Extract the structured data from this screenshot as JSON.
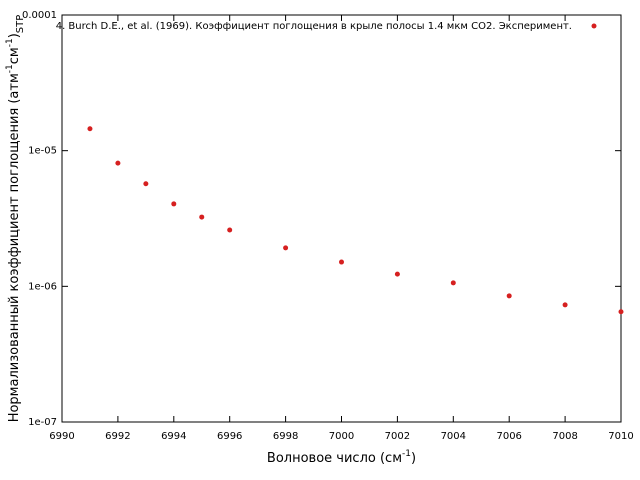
{
  "chart_data": {
    "type": "scatter",
    "xlabel_parts": [
      "Волновое число (см",
      "-1",
      ")"
    ],
    "ylabel_parts": [
      "Нормализованный коэффициент поглощения (атм",
      "-1",
      "см",
      "-1",
      ")",
      "STP"
    ],
    "series": [
      {
        "name": "4. Burch D.E., et al. (1969). Коэффициент поглощения в крыле полосы 1.4 мкм CO2. Эксперимент.",
        "color": "#d62020",
        "x": [
          6991,
          6992,
          6993,
          6994,
          6995,
          6996,
          6998,
          7000,
          7002,
          7004,
          7006,
          7008,
          7010
        ],
        "values": [
          1.45e-05,
          8.1e-06,
          5.7e-06,
          4.05e-06,
          3.24e-06,
          2.6e-06,
          1.92e-06,
          1.51e-06,
          1.23e-06,
          1.06e-06,
          8.5e-07,
          7.3e-07,
          6.5e-07
        ]
      }
    ],
    "xlim": [
      6990,
      7010
    ],
    "xticks": [
      6990,
      6992,
      6994,
      6996,
      6998,
      7000,
      7002,
      7004,
      7006,
      7008,
      7010
    ],
    "ylim": [
      1e-07,
      0.0001
    ],
    "yticks": [
      {
        "value": 1e-07,
        "label": "1e-07"
      },
      {
        "value": 1e-06,
        "label": "1e-06"
      },
      {
        "value": 1e-05,
        "label": "1e-05"
      },
      0.0001
    ],
    "ylog": true,
    "legend": "top-right"
  }
}
